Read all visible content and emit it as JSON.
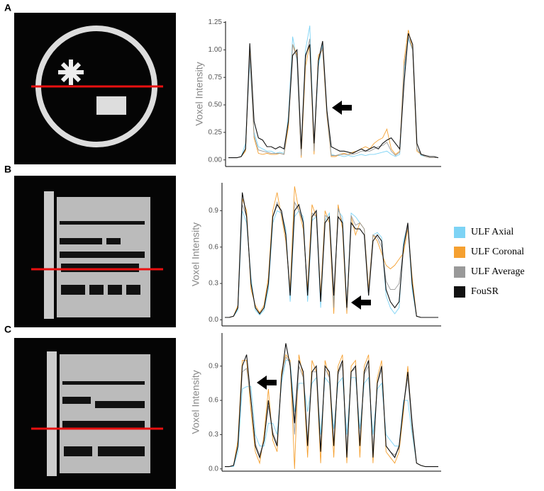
{
  "chart_data": [
    {
      "type": "line",
      "panel_label": "A",
      "ylabel": "Voxel Intensity",
      "ylim": [
        -0.06,
        1.26
      ],
      "yticks": [
        {
          "value": 0,
          "label": "0.00"
        },
        0.25,
        {
          "value": 0.5,
          "label": "0.50"
        },
        0.75,
        {
          "value": 1,
          "label": "1.00"
        },
        1.25
      ],
      "series": [
        {
          "name": "ULF Axial",
          "color": "#7dd3f5",
          "values": [
            0.02,
            0.02,
            0.02,
            0.03,
            0.15,
            0.9,
            0.25,
            0.12,
            0.1,
            0.08,
            0.08,
            0.06,
            0.07,
            0.06,
            0.4,
            1.12,
            0.9,
            0.05,
            1.0,
            1.22,
            0.1,
            0.85,
            1.05,
            0.45,
            0.05,
            0.04,
            0.04,
            0.03,
            0.04,
            0.03,
            0.04,
            0.05,
            0.04,
            0.05,
            0.05,
            0.06,
            0.07,
            0.08,
            0.05,
            0.03,
            0.05,
            0.8,
            1.1,
            1.0,
            0.1,
            0.04,
            0.03,
            0.02,
            0.02,
            0.02
          ]
        },
        {
          "name": "ULF Coronal",
          "color": "#f5a030",
          "values": [
            0.02,
            0.02,
            0.02,
            0.03,
            0.08,
            1.0,
            0.2,
            0.06,
            0.05,
            0.06,
            0.05,
            0.05,
            0.06,
            0.05,
            0.3,
            1.05,
            0.95,
            0.02,
            0.85,
            1.05,
            0.05,
            0.95,
            1.0,
            0.4,
            0.03,
            0.03,
            0.05,
            0.06,
            0.05,
            0.07,
            0.08,
            0.1,
            0.12,
            0.1,
            0.15,
            0.18,
            0.2,
            0.28,
            0.1,
            0.05,
            0.08,
            0.9,
            1.18,
            1.0,
            0.08,
            0.05,
            0.03,
            0.02,
            0.02,
            0.02
          ]
        },
        {
          "name": "ULF Average",
          "color": "#999999",
          "values": [
            0.02,
            0.02,
            0.02,
            0.03,
            0.1,
            0.95,
            0.22,
            0.09,
            0.08,
            0.07,
            0.06,
            0.06,
            0.06,
            0.05,
            0.35,
            1.05,
            0.92,
            0.04,
            0.92,
            1.1,
            0.08,
            0.9,
            1.02,
            0.42,
            0.04,
            0.04,
            0.05,
            0.05,
            0.05,
            0.05,
            0.06,
            0.08,
            0.08,
            0.08,
            0.1,
            0.12,
            0.13,
            0.16,
            0.08,
            0.04,
            0.07,
            0.85,
            1.12,
            1.0,
            0.1,
            0.05,
            0.03,
            0.02,
            0.02,
            0.02
          ]
        },
        {
          "name": "FouSR",
          "color": "#111111",
          "values": [
            0.02,
            0.02,
            0.02,
            0.03,
            0.1,
            1.06,
            0.35,
            0.2,
            0.18,
            0.12,
            0.12,
            0.1,
            0.12,
            0.1,
            0.35,
            0.95,
            1.0,
            0.1,
            0.95,
            1.05,
            0.15,
            0.9,
            1.08,
            0.45,
            0.12,
            0.1,
            0.08,
            0.08,
            0.07,
            0.06,
            0.08,
            0.1,
            0.08,
            0.1,
            0.12,
            0.1,
            0.15,
            0.18,
            0.2,
            0.15,
            0.1,
            0.7,
            1.15,
            1.05,
            0.15,
            0.05,
            0.04,
            0.03,
            0.03,
            0.02
          ]
        }
      ]
    },
    {
      "type": "line",
      "panel_label": "B",
      "ylabel": "Voxel Intensity",
      "ylim": [
        -0.05,
        1.13
      ],
      "yticks": [
        {
          "value": 0,
          "label": "0.0"
        },
        0.3,
        0.6,
        0.9
      ],
      "series": [
        {
          "name": "ULF Axial",
          "color": "#7dd3f5",
          "values": [
            0.02,
            0.02,
            0.03,
            0.08,
            0.9,
            0.8,
            0.35,
            0.08,
            0.04,
            0.08,
            0.25,
            0.8,
            0.9,
            0.88,
            0.75,
            0.15,
            0.85,
            0.9,
            0.85,
            0.15,
            0.82,
            0.85,
            0.1,
            0.82,
            0.88,
            0.15,
            0.9,
            0.85,
            0.1,
            0.88,
            0.85,
            0.8,
            0.75,
            0.2,
            0.7,
            0.72,
            0.68,
            0.2,
            0.1,
            0.05,
            0.1,
            0.65,
            0.78,
            0.25,
            0.03,
            0.02,
            0.02,
            0.02,
            0.02,
            0.02
          ]
        },
        {
          "name": "ULF Coronal",
          "color": "#f5a030",
          "values": [
            0.02,
            0.02,
            0.03,
            0.12,
            1.0,
            0.9,
            0.25,
            0.12,
            0.06,
            0.12,
            0.35,
            0.9,
            1.05,
            0.85,
            0.65,
            0.25,
            1.1,
            0.9,
            0.75,
            0.25,
            0.95,
            0.85,
            0.2,
            0.9,
            0.8,
            0.05,
            0.95,
            0.75,
            0.05,
            0.85,
            0.7,
            0.8,
            0.75,
            0.25,
            0.7,
            0.65,
            0.55,
            0.45,
            0.42,
            0.45,
            0.5,
            0.55,
            0.75,
            0.35,
            0.03,
            0.02,
            0.02,
            0.02,
            0.02,
            0.02
          ]
        },
        {
          "name": "ULF Average",
          "color": "#999999",
          "values": [
            0.02,
            0.02,
            0.03,
            0.1,
            0.95,
            0.85,
            0.3,
            0.1,
            0.05,
            0.1,
            0.3,
            0.85,
            0.97,
            0.87,
            0.7,
            0.2,
            0.97,
            0.9,
            0.8,
            0.2,
            0.88,
            0.85,
            0.15,
            0.86,
            0.84,
            0.1,
            0.92,
            0.8,
            0.08,
            0.86,
            0.78,
            0.8,
            0.75,
            0.22,
            0.7,
            0.68,
            0.6,
            0.32,
            0.25,
            0.25,
            0.3,
            0.6,
            0.77,
            0.3,
            0.03,
            0.02,
            0.02,
            0.02,
            0.02,
            0.02
          ]
        },
        {
          "name": "FouSR",
          "color": "#111111",
          "values": [
            0.02,
            0.02,
            0.03,
            0.1,
            1.05,
            0.85,
            0.3,
            0.1,
            0.05,
            0.1,
            0.3,
            0.85,
            0.95,
            0.9,
            0.7,
            0.2,
            0.9,
            0.95,
            0.8,
            0.2,
            0.85,
            0.9,
            0.15,
            0.8,
            0.85,
            0.2,
            0.85,
            0.8,
            0.1,
            0.8,
            0.75,
            0.75,
            0.7,
            0.2,
            0.65,
            0.7,
            0.65,
            0.25,
            0.15,
            0.1,
            0.15,
            0.6,
            0.8,
            0.3,
            0.03,
            0.02,
            0.02,
            0.02,
            0.02,
            0.02
          ]
        }
      ]
    },
    {
      "type": "line",
      "panel_label": "C",
      "ylabel": "Voxel Intensity",
      "ylim": [
        -0.02,
        1.19
      ],
      "yticks": [
        {
          "value": 0,
          "label": "0.0"
        },
        0.3,
        0.6,
        0.9
      ],
      "series": [
        {
          "name": "ULF Axial",
          "color": "#7dd3f5",
          "values": [
            0.02,
            0.02,
            0.02,
            0.15,
            0.7,
            0.72,
            0.72,
            0.3,
            0.2,
            0.2,
            0.4,
            0.4,
            0.3,
            0.75,
            0.95,
            0.95,
            0.5,
            0.75,
            0.75,
            0.5,
            0.75,
            0.8,
            0.3,
            0.8,
            0.75,
            0.35,
            0.75,
            0.8,
            0.3,
            0.8,
            0.8,
            0.35,
            0.75,
            0.8,
            0.3,
            0.7,
            0.75,
            0.3,
            0.25,
            0.2,
            0.2,
            0.6,
            0.6,
            0.3,
            0.05,
            0.03,
            0.02,
            0.02,
            0.02,
            0.02
          ]
        },
        {
          "name": "ULF Coronal",
          "color": "#f5a030",
          "values": [
            0.02,
            0.02,
            0.03,
            0.25,
            0.95,
            0.95,
            0.5,
            0.15,
            0.05,
            0.3,
            0.7,
            0.25,
            0.15,
            0.85,
            1.0,
            0.95,
            0.0,
            1.0,
            0.8,
            0.1,
            0.95,
            0.85,
            0.05,
            0.95,
            0.8,
            0.1,
            0.9,
            1.0,
            0.05,
            0.9,
            0.95,
            0.1,
            0.9,
            1.0,
            0.05,
            0.8,
            0.95,
            0.15,
            0.1,
            0.05,
            0.15,
            0.5,
            0.9,
            0.35,
            0.05,
            0.03,
            0.02,
            0.02,
            0.02,
            0.02
          ]
        },
        {
          "name": "ULF Average",
          "color": "#999999",
          "values": [
            0.02,
            0.02,
            0.03,
            0.2,
            0.85,
            0.88,
            0.6,
            0.22,
            0.12,
            0.25,
            0.55,
            0.32,
            0.22,
            0.8,
            0.98,
            0.93,
            0.3,
            0.9,
            0.8,
            0.25,
            0.85,
            0.85,
            0.15,
            0.88,
            0.8,
            0.2,
            0.83,
            0.92,
            0.15,
            0.85,
            0.88,
            0.2,
            0.83,
            0.9,
            0.15,
            0.75,
            0.87,
            0.2,
            0.15,
            0.12,
            0.18,
            0.55,
            0.8,
            0.35,
            0.05,
            0.03,
            0.02,
            0.02,
            0.02,
            0.02
          ]
        },
        {
          "name": "FouSR",
          "color": "#111111",
          "values": [
            0.02,
            0.02,
            0.03,
            0.2,
            0.9,
            1.0,
            0.6,
            0.2,
            0.1,
            0.25,
            0.6,
            0.3,
            0.2,
            0.8,
            1.1,
            0.9,
            0.4,
            0.95,
            0.85,
            0.2,
            0.85,
            0.9,
            0.15,
            0.9,
            0.85,
            0.2,
            0.85,
            0.95,
            0.1,
            0.85,
            0.9,
            0.2,
            0.85,
            0.95,
            0.1,
            0.75,
            0.9,
            0.2,
            0.15,
            0.1,
            0.2,
            0.55,
            0.85,
            0.4,
            0.05,
            0.03,
            0.02,
            0.02,
            0.02,
            0.02
          ]
        }
      ]
    }
  ]
}
